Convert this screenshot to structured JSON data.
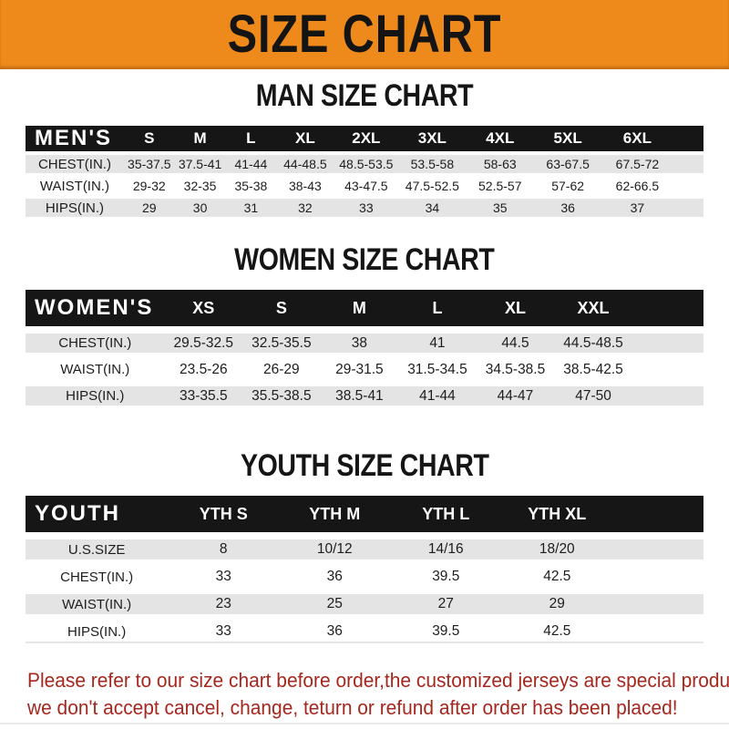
{
  "banner": {
    "title": "SIZE CHART"
  },
  "chart_data": [
    {
      "type": "table",
      "title": "MAN SIZE CHART",
      "header_label": "MEN'S",
      "columns": [
        "S",
        "M",
        "L",
        "XL",
        "2XL",
        "3XL",
        "4XL",
        "5XL",
        "6XL"
      ],
      "rows": [
        {
          "label": "CHEST(IN.)",
          "values": [
            "35-37.5",
            "37.5-41",
            "41-44",
            "44-48.5",
            "48.5-53.5",
            "53.5-58",
            "58-63",
            "63-67.5",
            "67.5-72"
          ]
        },
        {
          "label": "WAIST(IN.)",
          "values": [
            "29-32",
            "32-35",
            "35-38",
            "38-43",
            "43-47.5",
            "47.5-52.5",
            "52.5-57",
            "57-62",
            "62-66.5"
          ]
        },
        {
          "label": "HIPS(IN.)",
          "values": [
            "29",
            "30",
            "31",
            "32",
            "33",
            "34",
            "35",
            "36",
            "37"
          ]
        }
      ]
    },
    {
      "type": "table",
      "title": "WOMEN SIZE CHART",
      "header_label": "WOMEN'S",
      "columns": [
        "XS",
        "S",
        "M",
        "L",
        "XL",
        "XXL"
      ],
      "rows": [
        {
          "label": "CHEST(IN.)",
          "values": [
            "29.5-32.5",
            "32.5-35.5",
            "38",
            "41",
            "44.5",
            "44.5-48.5"
          ]
        },
        {
          "label": "WAIST(IN.)",
          "values": [
            "23.5-26",
            "26-29",
            "29-31.5",
            "31.5-34.5",
            "34.5-38.5",
            "38.5-42.5"
          ]
        },
        {
          "label": "HIPS(IN.)",
          "values": [
            "33-35.5",
            "35.5-38.5",
            "38.5-41",
            "41-44",
            "44-47",
            "47-50"
          ]
        }
      ]
    },
    {
      "type": "table",
      "title": "YOUTH SIZE CHART",
      "header_label": "YOUTH",
      "columns": [
        "YTH S",
        "YTH M",
        "YTH L",
        "YTH XL"
      ],
      "rows": [
        {
          "label": "U.S.SIZE",
          "values": [
            "8",
            "10/12",
            "14/16",
            "18/20"
          ]
        },
        {
          "label": "CHEST(IN.)",
          "values": [
            "33",
            "36",
            "39.5",
            "42.5"
          ]
        },
        {
          "label": "WAIST(IN.)",
          "values": [
            "23",
            "25",
            "27",
            "29"
          ]
        },
        {
          "label": "HIPS(IN.)",
          "values": [
            "33",
            "36",
            "39.5",
            "42.5"
          ]
        }
      ]
    }
  ],
  "footer": {
    "line1": "Please refer to our size chart before order,the customized jerseys are special products,",
    "line2": "we don't accept cancel, change, teturn or refund after order has been placed!"
  },
  "colors": {
    "banner_orange": "#EE8A1C",
    "header_bar_black": "#161616",
    "row_gray": "#E4E4E4",
    "row_white": "#FFFFFF",
    "footer_red": "#A5281F",
    "title_black": "#141414"
  }
}
